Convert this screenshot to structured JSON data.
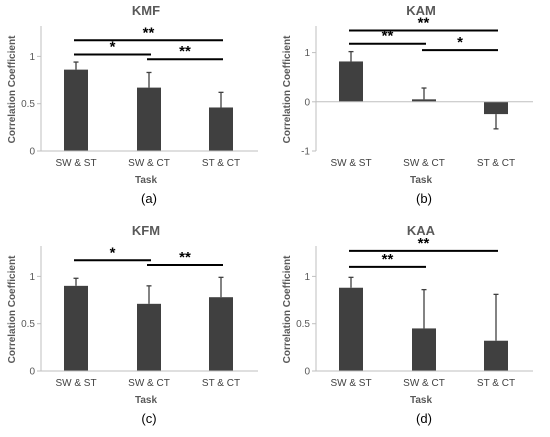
{
  "chart_data": [
    {
      "type": "bar",
      "title": "KMF",
      "ylabel": "Correlation Coefficient",
      "xlabel": "Task",
      "caption": "(a)",
      "categories": [
        "SW & ST",
        "SW & CT",
        "ST & CT"
      ],
      "values": [
        0.86,
        0.67,
        0.46
      ],
      "errors": [
        0.08,
        0.16,
        0.16
      ],
      "ylim": [
        0,
        1.3
      ],
      "yticks": [
        0,
        0.5,
        1
      ],
      "ytick_labels": [
        "0",
        "0.5",
        "1"
      ],
      "bar_color": "#404040",
      "significance": [
        {
          "from": 0,
          "to": 2,
          "label": "**",
          "y": 1.17
        },
        {
          "from": 0,
          "to": 1,
          "label": "*",
          "y": 1.02
        },
        {
          "from": 1,
          "to": 2,
          "label": "**",
          "y": 0.97
        }
      ]
    },
    {
      "type": "bar",
      "title": "KAM",
      "ylabel": "Correlation Coefficient",
      "xlabel": "Task",
      "caption": "(b)",
      "categories": [
        "SW & ST",
        "SW & CT",
        "ST & CT"
      ],
      "values": [
        0.82,
        0.05,
        -0.25
      ],
      "errors": [
        0.2,
        0.23,
        0.3
      ],
      "ylim": [
        -1,
        1.5
      ],
      "yticks": [
        -1,
        0,
        1
      ],
      "ytick_labels": [
        "-1",
        "0",
        "1"
      ],
      "bar_color": "#404040",
      "significance": [
        {
          "from": 0,
          "to": 2,
          "label": "**",
          "y": 1.45
        },
        {
          "from": 0,
          "to": 1,
          "label": "**",
          "y": 1.18
        },
        {
          "from": 1,
          "to": 2,
          "label": "*",
          "y": 1.05
        }
      ]
    },
    {
      "type": "bar",
      "title": "KFM",
      "ylabel": "Correlation Coefficient",
      "xlabel": "Task",
      "caption": "(c)",
      "categories": [
        "SW & ST",
        "SW & CT",
        "ST & CT"
      ],
      "values": [
        0.9,
        0.71,
        0.78
      ],
      "errors": [
        0.08,
        0.19,
        0.21
      ],
      "ylim": [
        0,
        1.3
      ],
      "yticks": [
        0,
        0.5,
        1
      ],
      "ytick_labels": [
        "0",
        "0.5",
        "1"
      ],
      "bar_color": "#404040",
      "significance": [
        {
          "from": 0,
          "to": 1,
          "label": "*",
          "y": 1.17
        },
        {
          "from": 1,
          "to": 2,
          "label": "**",
          "y": 1.12
        }
      ]
    },
    {
      "type": "bar",
      "title": "KAA",
      "ylabel": "Correlation Coefficient",
      "xlabel": "Task",
      "caption": "(d)",
      "categories": [
        "SW & ST",
        "SW & CT",
        "ST & CT"
      ],
      "values": [
        0.88,
        0.45,
        0.32
      ],
      "errors": [
        0.11,
        0.41,
        0.49
      ],
      "ylim": [
        0,
        1.3
      ],
      "yticks": [
        0,
        0.5,
        1
      ],
      "ytick_labels": [
        "0",
        "0.5",
        "1"
      ],
      "bar_color": "#404040",
      "significance": [
        {
          "from": 0,
          "to": 2,
          "label": "**",
          "y": 1.27
        },
        {
          "from": 0,
          "to": 1,
          "label": "**",
          "y": 1.1
        }
      ]
    }
  ]
}
